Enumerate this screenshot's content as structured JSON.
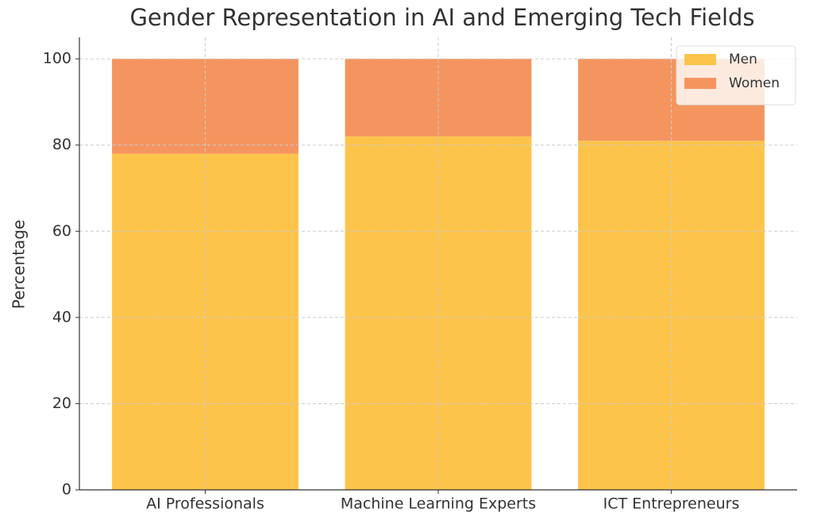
{
  "chart_data": {
    "type": "stacked_bar",
    "title": "Gender Representation in AI and Emerging Tech Fields",
    "ylabel": "Percentage",
    "categories": [
      "AI Professionals",
      "Machine Learning Experts",
      "ICT Entrepreneurs"
    ],
    "series": [
      {
        "name": "Men",
        "color": "#fdc44c",
        "values": [
          78,
          82,
          81
        ]
      },
      {
        "name": "Women",
        "color": "#f4955f",
        "values": [
          22,
          18,
          19
        ]
      }
    ],
    "ylim": [
      0,
      105
    ],
    "yticks": [
      0,
      20,
      40,
      60,
      80,
      100
    ],
    "grid": true,
    "legend": "upper right"
  }
}
